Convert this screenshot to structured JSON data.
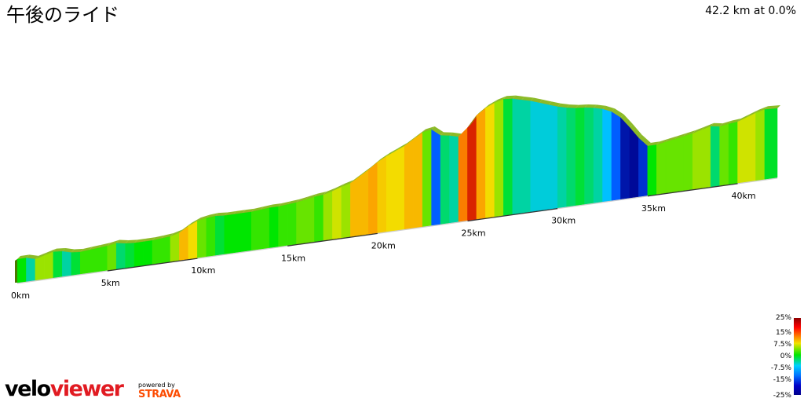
{
  "title": "午後のライド",
  "summary": "42.2 km at 0.0%",
  "legend": {
    "labels": [
      "25%",
      "15%",
      "7.5%",
      "0%",
      "-7.5%",
      "-15%",
      "-25%"
    ]
  },
  "branding": {
    "velo": "velo",
    "viewer": "viewer",
    "powered_by": "powered by",
    "strava": "STRAVA"
  },
  "chart_data": {
    "type": "area",
    "xlabel": "",
    "ylabel": "",
    "x_unit": "km",
    "xlim": [
      0,
      42.2
    ],
    "x_ticks": [
      0,
      5,
      10,
      15,
      20,
      25,
      30,
      35,
      40
    ],
    "x_tick_labels": [
      "0km",
      "5km",
      "10km",
      "15km",
      "20km",
      "25km",
      "30km",
      "35km",
      "40km"
    ],
    "grade_colors": {
      "-25": "#00008c",
      "-15": "#0055ff",
      "-7.5": "#00c8ff",
      "0": "#00e600",
      "7.5": "#f2e200",
      "15": "#ff8c00",
      "25": "#cc0000"
    },
    "elevation_profile": [
      [
        0,
        0
      ],
      [
        0.5,
        0
      ],
      [
        1.0,
        -3
      ],
      [
        1.5,
        0
      ],
      [
        2.0,
        3
      ],
      [
        2.5,
        2
      ],
      [
        3.0,
        -1
      ],
      [
        3.5,
        -2
      ],
      [
        4.0,
        -1
      ],
      [
        4.5,
        0
      ],
      [
        5.0,
        1
      ],
      [
        5.5,
        3
      ],
      [
        6.0,
        1
      ],
      [
        6.5,
        0
      ],
      [
        7.0,
        0
      ],
      [
        7.5,
        0
      ],
      [
        8.0,
        1
      ],
      [
        8.5,
        2
      ],
      [
        9.0,
        5
      ],
      [
        9.5,
        12
      ],
      [
        10.0,
        17
      ],
      [
        10.5,
        19
      ],
      [
        11.0,
        20
      ],
      [
        11.5,
        19
      ],
      [
        12.0,
        19
      ],
      [
        12.5,
        19
      ],
      [
        13.0,
        19
      ],
      [
        13.5,
        20
      ],
      [
        14.0,
        21
      ],
      [
        14.5,
        21
      ],
      [
        15.0,
        22
      ],
      [
        15.5,
        23
      ],
      [
        16.0,
        25
      ],
      [
        16.5,
        27
      ],
      [
        17.0,
        28
      ],
      [
        17.5,
        31
      ],
      [
        18.0,
        35
      ],
      [
        18.5,
        38
      ],
      [
        19.0,
        45
      ],
      [
        19.5,
        52
      ],
      [
        20.0,
        60
      ],
      [
        20.5,
        66
      ],
      [
        21.0,
        71
      ],
      [
        21.5,
        76
      ],
      [
        22.0,
        83
      ],
      [
        22.5,
        90
      ],
      [
        23.0,
        92
      ],
      [
        23.5,
        83
      ],
      [
        24.0,
        81
      ],
      [
        24.5,
        78
      ],
      [
        25.0,
        88
      ],
      [
        25.5,
        102
      ],
      [
        26.0,
        110
      ],
      [
        26.5,
        115
      ],
      [
        27.0,
        118
      ],
      [
        27.5,
        117
      ],
      [
        28.0,
        114
      ],
      [
        28.5,
        111
      ],
      [
        29.0,
        107
      ],
      [
        29.5,
        103
      ],
      [
        30.0,
        99
      ],
      [
        30.5,
        96
      ],
      [
        31.0,
        94
      ],
      [
        31.5,
        93
      ],
      [
        32.0,
        91
      ],
      [
        32.5,
        88
      ],
      [
        33.0,
        83
      ],
      [
        33.5,
        74
      ],
      [
        34.0,
        60
      ],
      [
        34.5,
        45
      ],
      [
        35.0,
        33
      ],
      [
        35.5,
        33
      ],
      [
        36.0,
        35
      ],
      [
        36.5,
        37
      ],
      [
        37.0,
        39
      ],
      [
        37.5,
        41
      ],
      [
        38.0,
        44
      ],
      [
        38.5,
        47
      ],
      [
        39.0,
        45
      ],
      [
        39.5,
        47
      ],
      [
        40.0,
        48
      ],
      [
        40.5,
        52
      ],
      [
        41.0,
        56
      ],
      [
        41.5,
        59
      ],
      [
        42.2,
        58
      ]
    ]
  }
}
